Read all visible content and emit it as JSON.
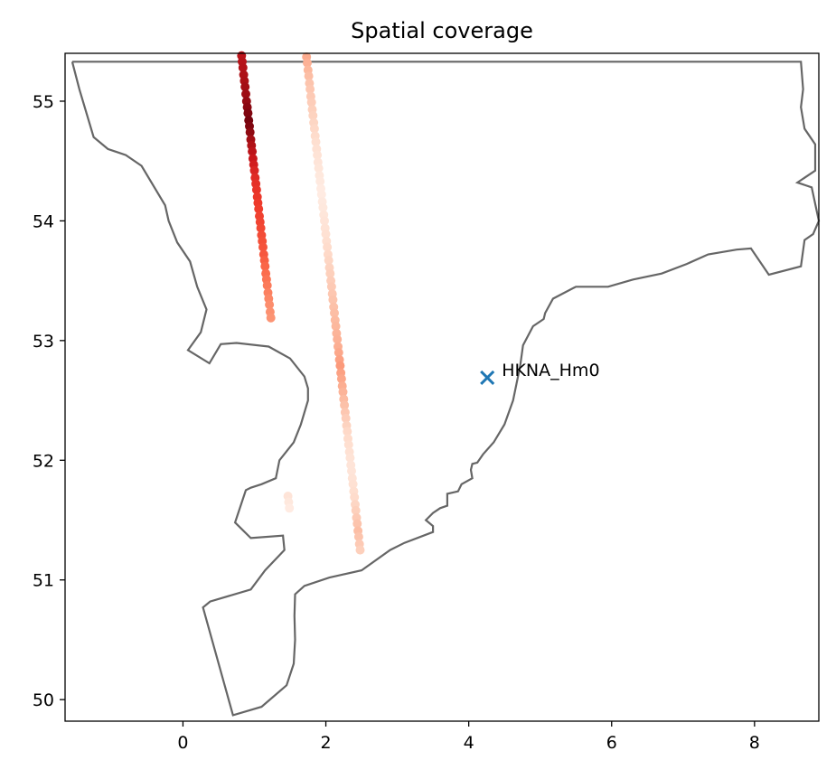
{
  "chart_data": {
    "type": "scatter",
    "title": "Spatial coverage",
    "xlabel": "",
    "ylabel": "",
    "xlim": [
      -1.65,
      8.9
    ],
    "ylim": [
      49.82,
      55.4
    ],
    "xticks": [
      0,
      2,
      4,
      6,
      8
    ],
    "yticks": [
      50,
      51,
      52,
      53,
      54,
      55
    ],
    "grid": false,
    "coastline_color": "#666666",
    "coastline": [
      [
        -1.55,
        55.33
      ],
      [
        -1.45,
        55.1
      ],
      [
        -1.25,
        54.7
      ],
      [
        -1.05,
        54.6
      ],
      [
        -0.8,
        54.55
      ],
      [
        -0.58,
        54.46
      ],
      [
        -0.25,
        54.13
      ],
      [
        -0.2,
        54.0
      ],
      [
        -0.08,
        53.82
      ],
      [
        0.1,
        53.66
      ],
      [
        0.2,
        53.45
      ],
      [
        0.33,
        53.26
      ],
      [
        0.25,
        53.07
      ],
      [
        0.07,
        52.92
      ],
      [
        0.37,
        52.81
      ],
      [
        0.53,
        52.97
      ],
      [
        0.75,
        52.98
      ],
      [
        1.2,
        52.95
      ],
      [
        1.5,
        52.85
      ],
      [
        1.7,
        52.7
      ],
      [
        1.75,
        52.6
      ],
      [
        1.75,
        52.5
      ],
      [
        1.65,
        52.3
      ],
      [
        1.55,
        52.15
      ],
      [
        1.35,
        52.0
      ],
      [
        1.3,
        51.85
      ],
      [
        1.1,
        51.8
      ],
      [
        0.95,
        51.77
      ],
      [
        0.88,
        51.75
      ],
      [
        0.73,
        51.48
      ],
      [
        0.95,
        51.35
      ],
      [
        1.4,
        51.37
      ],
      [
        1.42,
        51.25
      ],
      [
        1.15,
        51.08
      ],
      [
        0.95,
        50.92
      ],
      [
        0.38,
        50.82
      ],
      [
        0.28,
        50.77
      ],
      [
        0.7,
        49.87
      ],
      [
        1.1,
        49.94
      ],
      [
        1.45,
        50.12
      ],
      [
        1.55,
        50.3
      ],
      [
        1.57,
        50.5
      ],
      [
        1.56,
        50.7
      ],
      [
        1.57,
        50.88
      ],
      [
        1.7,
        50.95
      ],
      [
        2.05,
        51.02
      ],
      [
        2.5,
        51.08
      ],
      [
        2.9,
        51.25
      ],
      [
        3.1,
        51.31
      ],
      [
        3.5,
        51.4
      ],
      [
        3.5,
        51.45
      ],
      [
        3.4,
        51.5
      ],
      [
        3.5,
        51.56
      ],
      [
        3.6,
        51.6
      ],
      [
        3.7,
        51.62
      ],
      [
        3.7,
        51.72
      ],
      [
        3.85,
        51.74
      ],
      [
        3.9,
        51.8
      ],
      [
        4.05,
        51.85
      ],
      [
        4.03,
        51.92
      ],
      [
        4.05,
        51.97
      ],
      [
        4.12,
        51.98
      ],
      [
        4.2,
        52.05
      ],
      [
        4.35,
        52.15
      ],
      [
        4.5,
        52.3
      ],
      [
        4.62,
        52.5
      ],
      [
        4.72,
        52.79
      ],
      [
        4.76,
        52.96
      ],
      [
        4.9,
        53.12
      ],
      [
        5.05,
        53.18
      ],
      [
        5.07,
        53.23
      ],
      [
        5.18,
        53.35
      ],
      [
        5.5,
        53.45
      ],
      [
        5.95,
        53.45
      ],
      [
        6.3,
        53.51
      ],
      [
        6.7,
        53.56
      ],
      [
        7.05,
        53.64
      ],
      [
        7.35,
        53.72
      ],
      [
        7.75,
        53.76
      ],
      [
        7.95,
        53.77
      ],
      [
        8.2,
        53.55
      ],
      [
        8.65,
        53.62
      ],
      [
        8.7,
        53.84
      ],
      [
        8.82,
        53.89
      ],
      [
        8.9,
        54.0
      ],
      [
        8.8,
        54.28
      ],
      [
        8.6,
        54.32
      ],
      [
        8.85,
        54.42
      ],
      [
        8.85,
        54.64
      ],
      [
        8.7,
        54.77
      ],
      [
        8.65,
        54.95
      ],
      [
        8.68,
        55.1
      ],
      [
        8.65,
        55.33
      ],
      [
        -1.55,
        55.33
      ]
    ],
    "series": [
      {
        "marker": "circle",
        "colormap": "Reds",
        "points": [
          [
            0.82,
            55.38,
            0.8
          ],
          [
            0.83,
            55.33,
            0.82
          ],
          [
            0.84,
            55.28,
            0.83
          ],
          [
            0.85,
            55.22,
            0.85
          ],
          [
            0.86,
            55.17,
            0.86
          ],
          [
            0.87,
            55.12,
            0.88
          ],
          [
            0.88,
            55.06,
            0.89
          ],
          [
            0.89,
            55.0,
            0.91
          ],
          [
            0.9,
            54.95,
            0.93
          ],
          [
            0.91,
            54.9,
            0.95
          ],
          [
            0.92,
            54.84,
            0.97
          ],
          [
            0.93,
            54.79,
            0.95
          ],
          [
            0.94,
            54.74,
            0.92
          ],
          [
            0.95,
            54.68,
            0.88
          ],
          [
            0.96,
            54.63,
            0.84
          ],
          [
            0.97,
            54.58,
            0.8
          ],
          [
            0.98,
            54.52,
            0.76
          ],
          [
            0.99,
            54.47,
            0.73
          ],
          [
            1.0,
            54.42,
            0.7
          ],
          [
            1.01,
            54.36,
            0.68
          ],
          [
            1.02,
            54.31,
            0.66
          ],
          [
            1.03,
            54.26,
            0.65
          ],
          [
            1.04,
            54.2,
            0.64
          ],
          [
            1.05,
            54.15,
            0.63
          ],
          [
            1.06,
            54.1,
            0.62
          ],
          [
            1.07,
            54.04,
            0.61
          ],
          [
            1.08,
            53.99,
            0.6
          ],
          [
            1.09,
            53.94,
            0.59
          ],
          [
            1.1,
            53.88,
            0.58
          ],
          [
            1.11,
            53.83,
            0.57
          ],
          [
            1.12,
            53.78,
            0.56
          ],
          [
            1.13,
            53.72,
            0.55
          ],
          [
            1.14,
            53.67,
            0.53
          ],
          [
            1.15,
            53.62,
            0.51
          ],
          [
            1.16,
            53.56,
            0.49
          ],
          [
            1.17,
            53.51,
            0.47
          ],
          [
            1.18,
            53.46,
            0.45
          ],
          [
            1.19,
            53.4,
            0.43
          ],
          [
            1.2,
            53.35,
            0.41
          ],
          [
            1.21,
            53.3,
            0.39
          ],
          [
            1.22,
            53.24,
            0.38
          ],
          [
            1.23,
            53.19,
            0.37
          ],
          [
            1.73,
            55.37,
            0.3
          ],
          [
            1.74,
            55.32,
            0.28
          ],
          [
            1.75,
            55.26,
            0.26
          ],
          [
            1.76,
            55.21,
            0.24
          ],
          [
            1.77,
            55.15,
            0.22
          ],
          [
            1.78,
            55.1,
            0.21
          ],
          [
            1.79,
            55.04,
            0.2
          ],
          [
            1.8,
            54.99,
            0.19
          ],
          [
            1.81,
            54.93,
            0.18
          ],
          [
            1.82,
            54.88,
            0.17
          ],
          [
            1.83,
            54.82,
            0.16
          ],
          [
            1.84,
            54.77,
            0.15
          ],
          [
            1.85,
            54.71,
            0.14
          ],
          [
            1.86,
            54.66,
            0.13
          ],
          [
            1.87,
            54.6,
            0.12
          ],
          [
            1.88,
            54.55,
            0.11
          ],
          [
            1.89,
            54.49,
            0.1
          ],
          [
            1.9,
            54.44,
            0.09
          ],
          [
            1.91,
            54.38,
            0.08
          ],
          [
            1.92,
            54.33,
            0.07
          ],
          [
            1.93,
            54.27,
            0.06
          ],
          [
            1.94,
            54.22,
            0.06
          ],
          [
            1.95,
            54.16,
            0.07
          ],
          [
            1.96,
            54.11,
            0.08
          ],
          [
            1.97,
            54.05,
            0.09
          ],
          [
            1.98,
            54.0,
            0.1
          ],
          [
            1.99,
            53.94,
            0.11
          ],
          [
            2.0,
            53.89,
            0.12
          ],
          [
            2.01,
            53.83,
            0.13
          ],
          [
            2.02,
            53.78,
            0.14
          ],
          [
            2.03,
            53.72,
            0.15
          ],
          [
            2.04,
            53.67,
            0.16
          ],
          [
            2.05,
            53.61,
            0.17
          ],
          [
            2.06,
            53.56,
            0.18
          ],
          [
            2.07,
            53.5,
            0.19
          ],
          [
            2.08,
            53.45,
            0.2
          ],
          [
            2.09,
            53.39,
            0.21
          ],
          [
            2.1,
            53.34,
            0.22
          ],
          [
            2.11,
            53.28,
            0.23
          ],
          [
            2.12,
            53.23,
            0.24
          ],
          [
            2.13,
            53.17,
            0.25
          ],
          [
            2.14,
            53.12,
            0.26
          ],
          [
            2.15,
            53.06,
            0.27
          ],
          [
            2.16,
            53.01,
            0.28
          ],
          [
            2.17,
            52.95,
            0.29
          ],
          [
            2.18,
            52.9,
            0.31
          ],
          [
            2.19,
            52.84,
            0.33
          ],
          [
            2.2,
            52.79,
            0.35
          ],
          [
            2.21,
            52.73,
            0.33
          ],
          [
            2.22,
            52.68,
            0.31
          ],
          [
            2.23,
            52.62,
            0.29
          ],
          [
            2.24,
            52.57,
            0.27
          ],
          [
            2.25,
            52.51,
            0.25
          ],
          [
            2.26,
            52.46,
            0.23
          ],
          [
            2.27,
            52.4,
            0.21
          ],
          [
            2.28,
            52.35,
            0.19
          ],
          [
            2.29,
            52.29,
            0.17
          ],
          [
            2.3,
            52.24,
            0.15
          ],
          [
            2.31,
            52.18,
            0.14
          ],
          [
            2.32,
            52.13,
            0.13
          ],
          [
            2.33,
            52.07,
            0.12
          ],
          [
            2.34,
            52.02,
            0.11
          ],
          [
            2.35,
            51.96,
            0.1
          ],
          [
            2.36,
            51.91,
            0.1
          ],
          [
            2.37,
            51.85,
            0.11
          ],
          [
            2.38,
            51.8,
            0.12
          ],
          [
            2.39,
            51.74,
            0.13
          ],
          [
            2.4,
            51.69,
            0.14
          ],
          [
            2.41,
            51.63,
            0.16
          ],
          [
            2.42,
            51.58,
            0.18
          ],
          [
            2.43,
            51.52,
            0.2
          ],
          [
            2.44,
            51.47,
            0.22
          ],
          [
            2.45,
            51.41,
            0.24
          ],
          [
            2.46,
            51.36,
            0.22
          ],
          [
            2.47,
            51.3,
            0.2
          ],
          [
            2.48,
            51.25,
            0.18
          ],
          [
            1.47,
            51.7,
            0.1
          ],
          [
            1.48,
            51.65,
            0.08
          ],
          [
            1.49,
            51.6,
            0.06
          ]
        ]
      },
      {
        "marker": "x",
        "color": "#1f77b4",
        "points": [
          [
            4.26,
            52.69
          ]
        ]
      }
    ],
    "annotations": [
      {
        "text": "HKNA_Hm0",
        "x": 4.26,
        "y": 52.69
      }
    ]
  }
}
